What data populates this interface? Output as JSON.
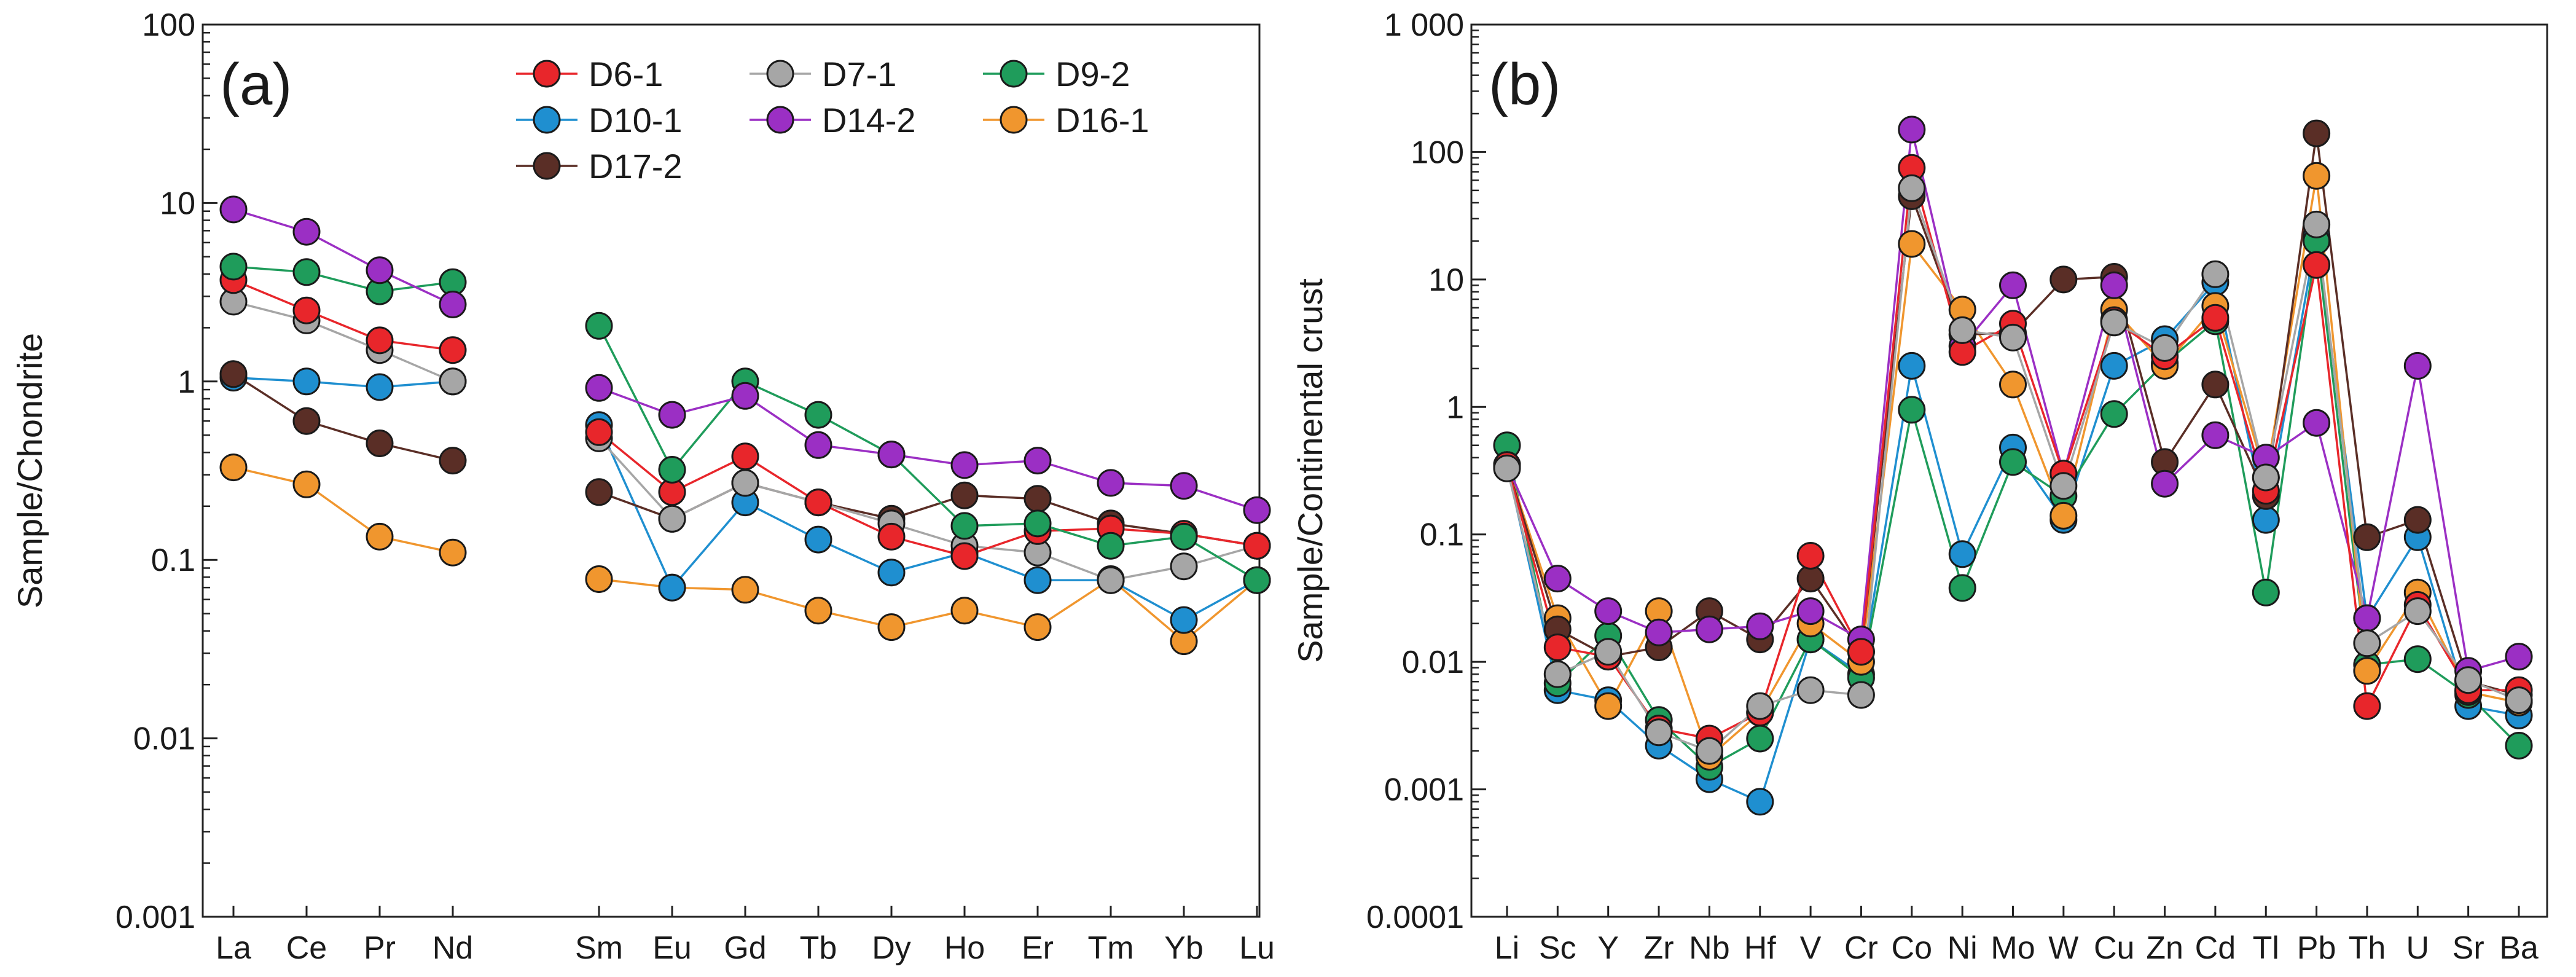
{
  "chart_data": [
    {
      "type": "line",
      "panel_label": "(a)",
      "ylabel": "Sample/Chondrite",
      "xlabel": "",
      "yscale": "log",
      "ylim": [
        0.001,
        100
      ],
      "y_ticks": [
        {
          "value": 0.001,
          "label": "0.001"
        },
        {
          "value": 0.01,
          "label": "0.01"
        },
        {
          "value": 0.1,
          "label": "0.1"
        },
        {
          "value": 1,
          "label": "1"
        },
        {
          "value": 10,
          "label": "10"
        },
        {
          "value": 100,
          "label": "100"
        }
      ],
      "categories": [
        "La",
        "Ce",
        "Pr",
        "Nd",
        "",
        "Sm",
        "Eu",
        "Gd",
        "Tb",
        "Dy",
        "Ho",
        "Er",
        "Tm",
        "Yb",
        "Lu"
      ],
      "grid": false,
      "legend_position": "top-right",
      "legend": [
        {
          "name": "D6-1",
          "color": "#e8262b"
        },
        {
          "name": "D7-1",
          "color": "#a6a6a6"
        },
        {
          "name": "D9-2",
          "color": "#1f9c5b"
        },
        {
          "name": "D10-1",
          "color": "#1f8fd0"
        },
        {
          "name": "D14-2",
          "color": "#9b2fc4"
        },
        {
          "name": "D16-1",
          "color": "#f0962e"
        },
        {
          "name": "D17-2",
          "color": "#5a2e26"
        }
      ],
      "series": [
        {
          "name": "D16-1",
          "values": [
            0.33,
            0.265,
            0.135,
            0.11,
            null,
            0.078,
            0.07,
            0.068,
            0.052,
            0.042,
            0.052,
            0.042,
            0.078,
            0.035,
            0.077
          ]
        },
        {
          "name": "D10-1",
          "values": [
            1.05,
            1.0,
            0.93,
            1.0,
            null,
            0.57,
            0.07,
            0.21,
            0.13,
            0.085,
            0.11,
            0.077,
            0.077,
            0.046,
            0.077
          ]
        },
        {
          "name": "D17-2",
          "values": [
            1.1,
            0.6,
            0.45,
            0.36,
            null,
            0.24,
            0.17,
            0.27,
            0.21,
            0.17,
            0.23,
            0.22,
            0.16,
            0.14,
            0.12
          ]
        },
        {
          "name": "D7-1",
          "values": [
            2.8,
            2.2,
            1.5,
            1.0,
            null,
            0.48,
            0.17,
            0.27,
            0.21,
            0.16,
            0.12,
            0.11,
            0.077,
            0.092,
            0.12
          ]
        },
        {
          "name": "D6-1",
          "values": [
            3.7,
            2.5,
            1.7,
            1.5,
            null,
            0.52,
            0.24,
            0.38,
            0.21,
            0.135,
            0.105,
            0.145,
            0.15,
            0.14,
            0.12
          ]
        },
        {
          "name": "D9-2",
          "values": [
            4.4,
            4.1,
            3.2,
            3.6,
            null,
            2.05,
            0.32,
            1.0,
            0.65,
            0.39,
            0.155,
            0.16,
            0.12,
            0.135,
            0.077
          ]
        },
        {
          "name": "D14-2",
          "values": [
            9.2,
            6.9,
            4.2,
            2.7,
            null,
            0.92,
            0.65,
            0.83,
            0.44,
            0.39,
            0.34,
            0.36,
            0.27,
            0.26,
            0.19
          ]
        }
      ]
    },
    {
      "type": "line",
      "panel_label": "(b)",
      "ylabel": "Sample/Continental crust",
      "xlabel": "",
      "yscale": "log",
      "ylim": [
        0.0001,
        1000
      ],
      "y_ticks": [
        {
          "value": 0.0001,
          "label": "0.0001"
        },
        {
          "value": 0.001,
          "label": "0.001"
        },
        {
          "value": 0.01,
          "label": "0.01"
        },
        {
          "value": 0.1,
          "label": "0.1"
        },
        {
          "value": 1,
          "label": "1"
        },
        {
          "value": 10,
          "label": "10"
        },
        {
          "value": 100,
          "label": "100"
        },
        {
          "value": 1000,
          "label": "1 000"
        }
      ],
      "categories": [
        "Li",
        "Sc",
        "Y",
        "Zr",
        "Nb",
        "Hf",
        "V",
        "Cr",
        "Co",
        "Ni",
        "Mo",
        "W",
        "Cu",
        "Zn",
        "Cd",
        "Tl",
        "Pb",
        "Th",
        "U",
        "Sr",
        "Ba"
      ],
      "grid": false,
      "series": [
        {
          "name": "D10-1",
          "values": [
            0.35,
            0.006,
            0.005,
            0.0022,
            0.0012,
            0.0008,
            0.015,
            0.008,
            2.1,
            0.07,
            0.48,
            0.13,
            2.1,
            3.4,
            9.5,
            0.13,
            22,
            0.022,
            0.095,
            0.0045,
            0.0038
          ]
        },
        {
          "name": "D9-2",
          "values": [
            0.5,
            0.0068,
            0.016,
            0.0035,
            0.0015,
            0.0025,
            0.015,
            0.0075,
            0.95,
            0.038,
            0.37,
            0.2,
            0.88,
            2.2,
            4.7,
            0.035,
            20,
            0.0095,
            0.0105,
            0.0055,
            0.0022
          ]
        },
        {
          "name": "D16-1",
          "values": [
            0.35,
            0.022,
            0.0045,
            0.025,
            0.0018,
            0.004,
            0.02,
            0.01,
            19,
            5.8,
            1.5,
            0.14,
            5.8,
            2.1,
            6.2,
            0.28,
            65,
            0.0085,
            0.035,
            0.0058,
            0.0048
          ]
        },
        {
          "name": "D17-2",
          "values": [
            0.35,
            0.018,
            0.011,
            0.013,
            0.025,
            0.015,
            0.045,
            0.012,
            45,
            3.7,
            3.8,
            10,
            10.5,
            0.37,
            1.5,
            0.2,
            140,
            0.095,
            0.13,
            0.007,
            0.0055
          ]
        },
        {
          "name": "D14-2",
          "values": [
            0.35,
            0.045,
            0.025,
            0.017,
            0.018,
            0.019,
            0.025,
            0.015,
            150,
            3.0,
            9.0,
            0.3,
            9.0,
            0.25,
            0.6,
            0.4,
            0.75,
            0.022,
            2.1,
            0.0085,
            0.011
          ]
        },
        {
          "name": "D6-1",
          "values": [
            0.35,
            0.013,
            0.011,
            0.003,
            0.0025,
            0.004,
            0.068,
            0.012,
            75,
            2.7,
            4.5,
            0.3,
            4.8,
            2.5,
            5.0,
            0.22,
            13,
            0.0045,
            0.028,
            0.006,
            0.006
          ]
        },
        {
          "name": "D7-1",
          "values": [
            0.33,
            0.008,
            0.012,
            0.0028,
            0.002,
            0.0045,
            0.006,
            0.0055,
            52,
            4.0,
            3.5,
            0.24,
            4.6,
            2.9,
            11,
            0.28,
            27,
            0.014,
            0.025,
            0.0072,
            0.005
          ]
        }
      ]
    }
  ]
}
